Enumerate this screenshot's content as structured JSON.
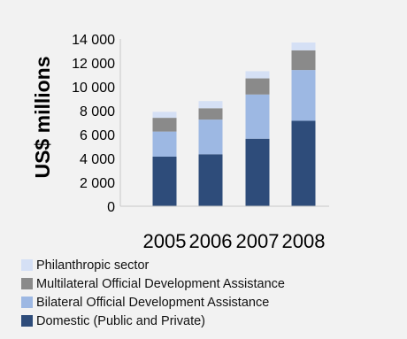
{
  "chart_data": {
    "type": "bar",
    "stacked": true,
    "categories": [
      "2005",
      "2006",
      "2007",
      "2008"
    ],
    "series": [
      {
        "name": "Domestic (Public and Private)",
        "color": "#2e4c7a",
        "values": [
          4150,
          4350,
          5650,
          7150
        ]
      },
      {
        "name": "Bilateral Official Development Assistance",
        "color": "#9db8e3",
        "values": [
          2100,
          2900,
          3700,
          4250
        ]
      },
      {
        "name": "Multilateral Official Development Assistance",
        "color": "#8a8a8a",
        "values": [
          1150,
          950,
          1350,
          1650
        ]
      },
      {
        "name": "Philanthropic sector",
        "color": "#d5e0f5",
        "values": [
          500,
          600,
          600,
          650
        ]
      }
    ],
    "ylabel": "US$ millions",
    "ylim": [
      0,
      14000
    ],
    "yticks": [
      "0",
      "2 000",
      "4 000",
      "6 000",
      "8 000",
      "10 000",
      "12 000",
      "14 000"
    ],
    "grid": false,
    "legend_position": "bottom"
  },
  "legend": [
    {
      "label": "Philanthropic sector",
      "color": "#d5e0f5"
    },
    {
      "label": "Multilateral Official Development Assistance",
      "color": "#8a8a8a"
    },
    {
      "label": "Bilateral Official Development Assistance",
      "color": "#9db8e3"
    },
    {
      "label": "Domestic (Public and Private)",
      "color": "#2e4c7a"
    }
  ]
}
